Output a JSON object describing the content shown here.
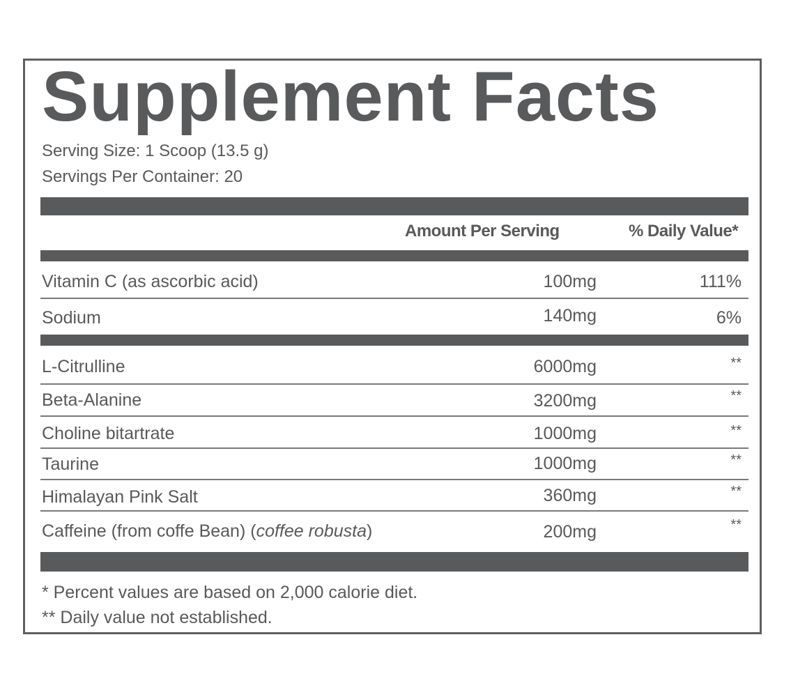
{
  "title": "Supplement Facts",
  "serving_size": "Serving Size: 1 Scoop (13.5 g)",
  "servings_per_container": "Servings Per Container: 20",
  "columns": {
    "amount": "Amount Per Serving",
    "daily_value": "% Daily Value*"
  },
  "section1": [
    {
      "name": "Vitamin C (as ascorbic acid)",
      "amount": "100mg",
      "dv": "111%"
    },
    {
      "name": "Sodium",
      "amount": "140mg",
      "dv": "6%"
    }
  ],
  "section2": [
    {
      "name": "L-Citrulline",
      "amount": "6000mg",
      "dv": "**"
    },
    {
      "name": "Beta-Alanine",
      "amount": "3200mg",
      "dv": "**"
    },
    {
      "name": "Choline bitartrate",
      "amount": "1000mg",
      "dv": "**"
    },
    {
      "name": "Taurine",
      "amount": "1000mg",
      "dv": "**"
    },
    {
      "name": "Himalayan Pink Salt",
      "amount": "360mg",
      "dv": "**"
    },
    {
      "name_prefix": "Caffeine (from coffe Bean) (",
      "name_italic": "coffee robusta",
      "name_suffix": ")",
      "amount": "200mg",
      "dv": "**"
    }
  ],
  "footnotes": [
    "* Percent values are based on 2,000 calorie diet.",
    "** Daily value not established."
  ],
  "colors": {
    "ink": "#58595b",
    "bar": "#595a5c",
    "border": "#5e5f61"
  }
}
